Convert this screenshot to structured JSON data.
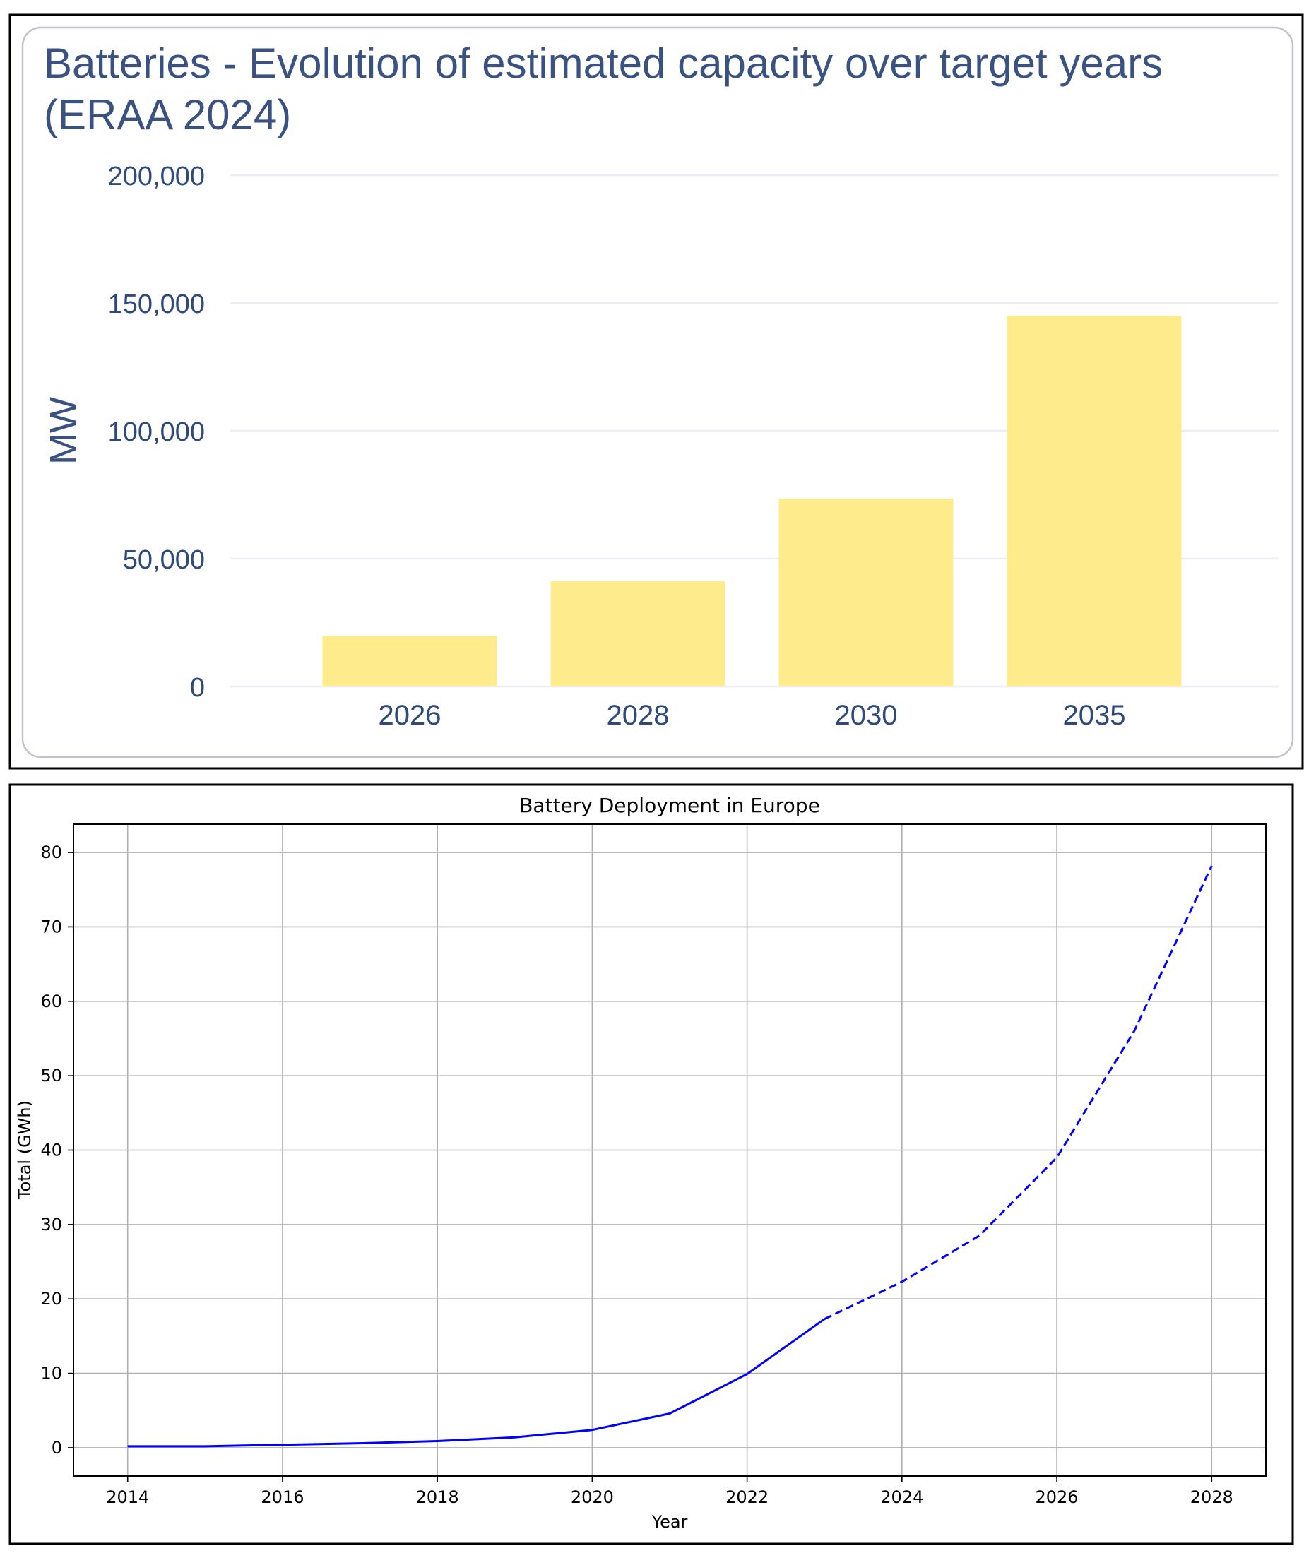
{
  "chart_data": [
    {
      "type": "bar",
      "title_lines": [
        "Batteries - Evolution of estimated capacity over target years",
        "(ERAA 2024)"
      ],
      "ylabel": "MW",
      "xlabel": "",
      "categories": [
        "2026",
        "2028",
        "2030",
        "2035"
      ],
      "values": [
        19800,
        41200,
        73500,
        145000
      ],
      "ylim": [
        0,
        200000
      ],
      "yticks": [
        0,
        50000,
        100000,
        150000,
        200000
      ],
      "ytick_labels": [
        "0",
        "50,000",
        "100,000",
        "150,000",
        "200,000"
      ],
      "grid": true,
      "colors": {
        "bar": "#feec8c",
        "text": "#2e4a7d",
        "title": "#3a5282",
        "grid": "#eceef3",
        "frame": "#bfc3c9"
      }
    },
    {
      "type": "line",
      "title": "Battery Deployment in Europe",
      "xlabel": "Year",
      "ylabel": "Total (GWh)",
      "x_actual": [
        2014,
        2015,
        2016,
        2017,
        2018,
        2019,
        2020,
        2021,
        2022,
        2023
      ],
      "y_actual": [
        0.2,
        0.2,
        0.4,
        0.6,
        0.9,
        1.4,
        2.4,
        4.6,
        9.9,
        17.3
      ],
      "x_projected": [
        2023,
        2024,
        2025,
        2026,
        2027,
        2028
      ],
      "y_projected": [
        17.3,
        22.3,
        28.5,
        39.0,
        56.0,
        78.2
      ],
      "series_styles": {
        "actual": "solid",
        "projected": "dashed"
      },
      "xlim": [
        2013.3,
        2028.7
      ],
      "ylim": [
        -3.8,
        83.8
      ],
      "xticks": [
        2014,
        2016,
        2018,
        2020,
        2022,
        2024,
        2026,
        2028
      ],
      "yticks": [
        0,
        10,
        20,
        30,
        40,
        50,
        60,
        70,
        80
      ],
      "grid": true,
      "colors": {
        "line": "#0000ff",
        "grid": "#b0b0b0",
        "axes": "#000000"
      }
    }
  ]
}
